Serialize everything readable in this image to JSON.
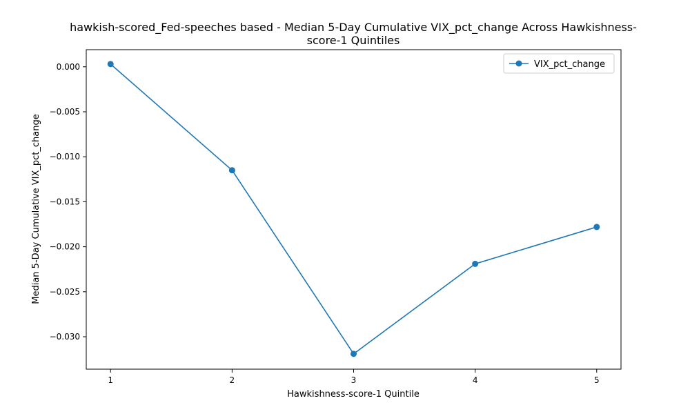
{
  "chart_data": {
    "type": "line",
    "title_line1": "hawkish-scored_Fed-speeches based - Median 5-Day Cumulative VIX_pct_change Across Hawkishness-",
    "title_line2": "score-1 Quintiles",
    "xlabel": "Hawkishness-score-1 Quintile",
    "ylabel": "Median 5-Day Cumulative VIX_pct_change",
    "x": [
      1,
      2,
      3,
      4,
      5
    ],
    "x_tick_labels": [
      "1",
      "2",
      "3",
      "4",
      "5"
    ],
    "xlim": [
      0.8,
      5.2
    ],
    "y_ticks": [
      0.0,
      -0.005,
      -0.01,
      -0.015,
      -0.02,
      -0.025,
      -0.03
    ],
    "y_tick_labels": [
      "0.000",
      "−0.005",
      "−0.010",
      "−0.015",
      "−0.020",
      "−0.025",
      "−0.030"
    ],
    "ylim": [
      -0.0336,
      0.0019
    ],
    "grid": false,
    "legend_position": "top-right",
    "series": [
      {
        "name": "VIX_pct_change",
        "values": [
          0.0003,
          -0.0115,
          -0.0319,
          -0.0219,
          -0.0178
        ],
        "color": "#1f77b4",
        "marker": "circle"
      }
    ]
  }
}
